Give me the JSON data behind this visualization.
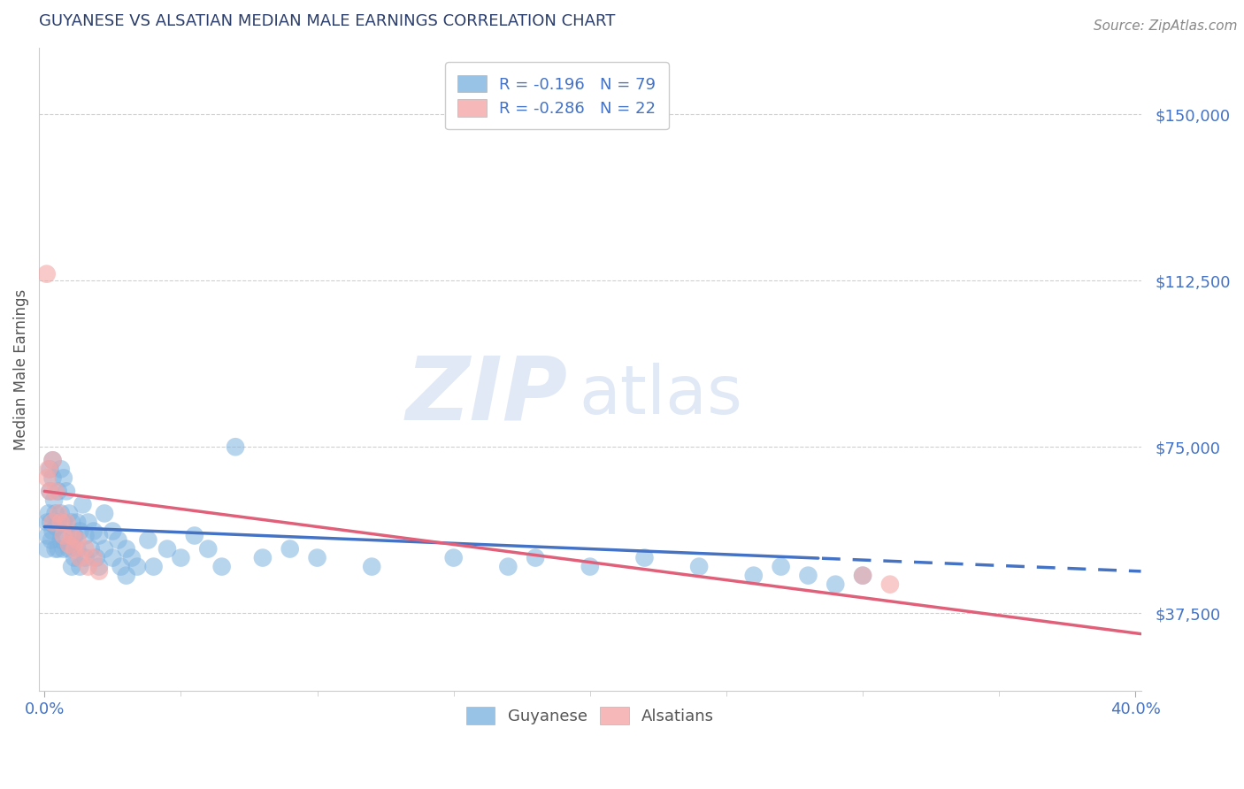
{
  "title": "GUYANESE VS ALSATIAN MEDIAN MALE EARNINGS CORRELATION CHART",
  "source_text": "Source: ZipAtlas.com",
  "ylabel": "Median Male Earnings",
  "xlim": [
    -0.002,
    0.402
  ],
  "ylim": [
    20000,
    165000
  ],
  "yticks": [
    37500,
    75000,
    112500,
    150000
  ],
  "ytick_labels": [
    "$37,500",
    "$75,000",
    "$112,500",
    "$150,000"
  ],
  "xtick_positions": [
    0.0,
    0.4
  ],
  "xtick_labels": [
    "0.0%",
    "40.0%"
  ],
  "background_color": "#ffffff",
  "title_color": "#2c4770",
  "axis_color": "#4472c4",
  "watermark_zip": "ZIP",
  "watermark_atlas": "atlas",
  "legend_r1": "R = -0.196",
  "legend_n1": "N = 79",
  "legend_r2": "R = -0.286",
  "legend_n2": "N = 22",
  "guyanese_color": "#7fb3e0",
  "alsatian_color": "#f4a7a7",
  "trend_blue": "#4472c4",
  "trend_pink": "#e0607a",
  "guyanese_x": [
    0.0008,
    0.001,
    0.0012,
    0.0015,
    0.002,
    0.002,
    0.0022,
    0.0025,
    0.003,
    0.003,
    0.003,
    0.0035,
    0.004,
    0.004,
    0.0042,
    0.005,
    0.005,
    0.005,
    0.006,
    0.006,
    0.006,
    0.007,
    0.007,
    0.007,
    0.008,
    0.008,
    0.009,
    0.009,
    0.01,
    0.01,
    0.01,
    0.011,
    0.011,
    0.012,
    0.012,
    0.013,
    0.013,
    0.014,
    0.015,
    0.015,
    0.016,
    0.017,
    0.018,
    0.019,
    0.02,
    0.02,
    0.022,
    0.022,
    0.025,
    0.025,
    0.027,
    0.028,
    0.03,
    0.03,
    0.032,
    0.034,
    0.038,
    0.04,
    0.045,
    0.05,
    0.055,
    0.06,
    0.065,
    0.07,
    0.08,
    0.09,
    0.1,
    0.12,
    0.15,
    0.17,
    0.18,
    0.2,
    0.22,
    0.24,
    0.26,
    0.27,
    0.28,
    0.29,
    0.3
  ],
  "guyanese_y": [
    52000,
    58000,
    55000,
    60000,
    65000,
    70000,
    58000,
    54000,
    72000,
    68000,
    56000,
    63000,
    60000,
    52000,
    57000,
    65000,
    58000,
    52000,
    70000,
    60000,
    54000,
    68000,
    58000,
    52000,
    65000,
    55000,
    60000,
    52000,
    58000,
    53000,
    48000,
    55000,
    50000,
    58000,
    52000,
    56000,
    48000,
    62000,
    55000,
    50000,
    58000,
    52000,
    56000,
    50000,
    55000,
    48000,
    60000,
    52000,
    56000,
    50000,
    54000,
    48000,
    52000,
    46000,
    50000,
    48000,
    54000,
    48000,
    52000,
    50000,
    55000,
    52000,
    48000,
    75000,
    50000,
    52000,
    50000,
    48000,
    50000,
    48000,
    50000,
    48000,
    50000,
    48000,
    46000,
    48000,
    46000,
    44000,
    46000
  ],
  "alsatian_x": [
    0.0008,
    0.001,
    0.0015,
    0.002,
    0.003,
    0.003,
    0.004,
    0.005,
    0.006,
    0.007,
    0.008,
    0.009,
    0.01,
    0.011,
    0.012,
    0.013,
    0.015,
    0.016,
    0.018,
    0.02,
    0.3,
    0.31
  ],
  "alsatian_y": [
    114000,
    68000,
    70000,
    65000,
    72000,
    58000,
    65000,
    60000,
    58000,
    55000,
    58000,
    53000,
    55000,
    52000,
    54000,
    50000,
    52000,
    48000,
    50000,
    47000,
    46000,
    44000
  ],
  "trend_g_intercept": 57000,
  "trend_g_slope": -25000,
  "trend_a_intercept": 65000,
  "trend_a_slope": -80000,
  "trend_split_x": 0.285
}
